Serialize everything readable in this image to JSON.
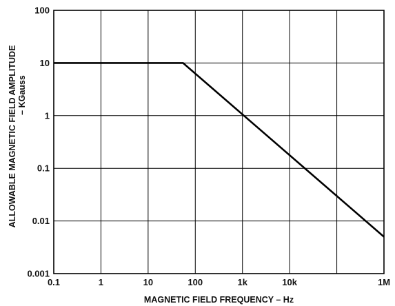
{
  "chart_data": {
    "type": "line",
    "x_scale": "log",
    "y_scale": "log",
    "xlim": [
      0.1,
      1000000
    ],
    "ylim": [
      0.001,
      100
    ],
    "grid": true,
    "xlabel": "MAGNETIC FIELD FREQUENCY – Hz",
    "ylabel_lines": [
      "ALLOWABLE MAGNETIC FIELD AMPLITUDE",
      "– KGauss"
    ],
    "x_ticks": [
      {
        "value": 0.1,
        "label": "0.1"
      },
      {
        "value": 1,
        "label": "1"
      },
      {
        "value": 10,
        "label": "10"
      },
      {
        "value": 100,
        "label": "100"
      },
      {
        "value": 1000,
        "label": "1k"
      },
      {
        "value": 10000,
        "label": "10k"
      },
      {
        "value": 1000000,
        "label": "1M"
      }
    ],
    "x_gridlines": [
      1,
      10,
      100,
      1000,
      10000,
      100000
    ],
    "y_ticks": [
      {
        "value": 0.001,
        "label": "0.001"
      },
      {
        "value": 0.01,
        "label": "0.01"
      },
      {
        "value": 0.1,
        "label": "0.1"
      },
      {
        "value": 1,
        "label": "1"
      },
      {
        "value": 10,
        "label": "10"
      },
      {
        "value": 100,
        "label": "100"
      }
    ],
    "series": [
      {
        "x": [
          0.1,
          55,
          1000000
        ],
        "y": [
          10,
          10,
          0.005
        ]
      }
    ]
  }
}
